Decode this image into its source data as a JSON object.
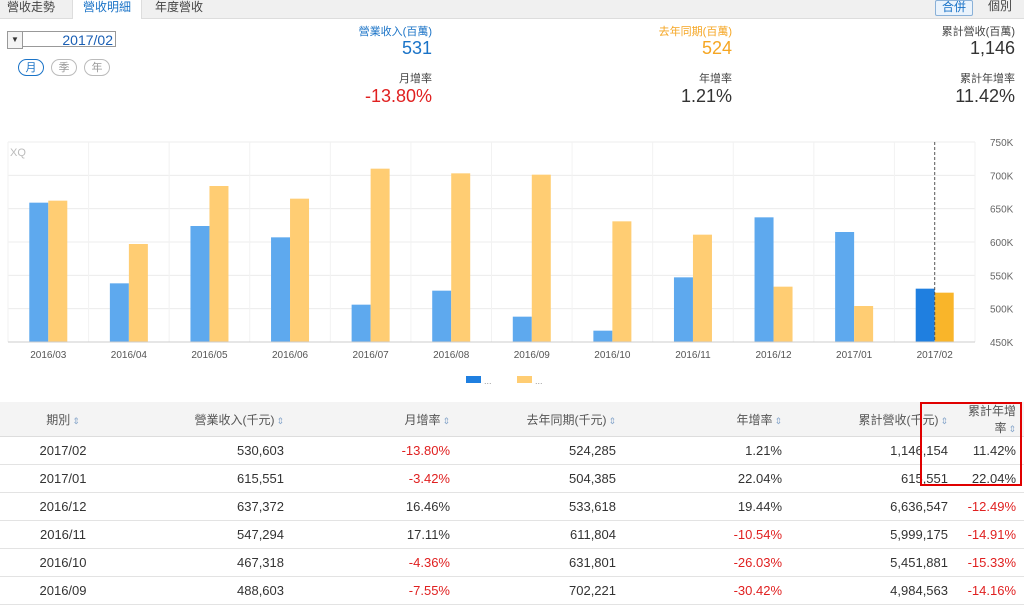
{
  "tabs": [
    {
      "label": "營收走勢",
      "active": false
    },
    {
      "label": "營收明細",
      "active": true
    },
    {
      "label": "年度營收",
      "active": false
    }
  ],
  "scope_toggle": [
    {
      "label": "合併",
      "active": true
    },
    {
      "label": "個別",
      "active": false
    }
  ],
  "period": {
    "value": "2017/02"
  },
  "period_types": [
    {
      "label": "月",
      "active": true
    },
    {
      "label": "季",
      "active": false
    },
    {
      "label": "年",
      "active": false
    }
  ],
  "summary": {
    "revenue_label": "營業收入(百萬)",
    "revenue_value": "531",
    "mom_label": "月增率",
    "mom_value": "-13.80%",
    "last_year_label": "去年同期(百萬)",
    "last_year_value": "524",
    "yoy_label": "年增率",
    "yoy_value": "1.21%",
    "cum_label": "累計營收(百萬)",
    "cum_value": "1,146",
    "cum_yoy_label": "累計年增率",
    "cum_yoy_value": "11.42%"
  },
  "colors": {
    "blue": "#5ea9ee",
    "blue_highlight": "#1f7fe0",
    "orange": "#ffcd73",
    "orange_highlight": "#f9b52a",
    "red": "#e02020",
    "revenue_label": "#1a73c7",
    "last_year_label": "#f5a623"
  },
  "chart_data": {
    "type": "bar",
    "watermark": "XQ",
    "categories": [
      "2016/03",
      "2016/04",
      "2016/05",
      "2016/06",
      "2016/07",
      "2016/08",
      "2016/09",
      "2016/10",
      "2016/11",
      "2016/12",
      "2017/01",
      "2017/02"
    ],
    "series": [
      {
        "name": "...",
        "values": [
          659,
          538,
          624,
          607,
          506,
          527,
          488,
          467,
          547,
          637,
          615,
          530
        ]
      },
      {
        "name": "...",
        "values": [
          662,
          597,
          684,
          665,
          710,
          703,
          701,
          631,
          611,
          533,
          504,
          524
        ]
      }
    ],
    "yticks": [
      "750K",
      "700K",
      "650K",
      "600K",
      "550K",
      "500K",
      "450K"
    ],
    "ytick_values": [
      750,
      700,
      650,
      600,
      550,
      500,
      450
    ],
    "ylim": [
      450,
      750
    ],
    "unit": "K",
    "highlight_index": 11
  },
  "table": {
    "headers": [
      "期別",
      "營業收入(千元)",
      "月增率",
      "去年同期(千元)",
      "年增率",
      "累計營收(千元)",
      "累計年增率"
    ],
    "rows": [
      [
        "2017/02",
        "530,603",
        "-13.80%",
        "524,285",
        "1.21%",
        "1,146,154",
        "11.42%"
      ],
      [
        "2017/01",
        "615,551",
        "-3.42%",
        "504,385",
        "22.04%",
        "615,551",
        "22.04%"
      ],
      [
        "2016/12",
        "637,372",
        "16.46%",
        "533,618",
        "19.44%",
        "6,636,547",
        "-12.49%"
      ],
      [
        "2016/11",
        "547,294",
        "17.11%",
        "611,804",
        "-10.54%",
        "5,999,175",
        "-14.91%"
      ],
      [
        "2016/10",
        "467,318",
        "-4.36%",
        "631,801",
        "-26.03%",
        "5,451,881",
        "-15.33%"
      ],
      [
        "2016/09",
        "488,603",
        "-7.55%",
        "702,221",
        "-30.42%",
        "4,984,563",
        "-14.16%"
      ]
    ]
  }
}
